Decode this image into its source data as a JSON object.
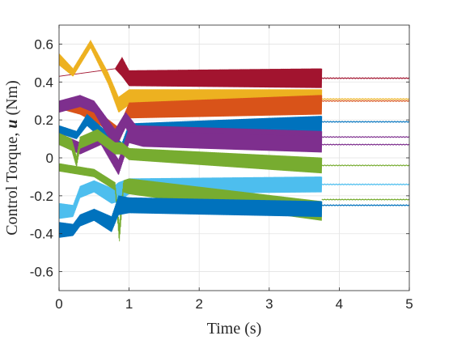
{
  "chart_data": {
    "type": "line",
    "xlabel": "Time (s)",
    "ylabel": "Control Torque, u (Nm)",
    "ylabel_parts": {
      "pre": "Control Torque, ",
      "symbol": "u",
      "post": " (Nm)"
    },
    "xlim": [
      0,
      5
    ],
    "ylim": [
      -0.7,
      0.7
    ],
    "xticks": [
      0,
      1,
      2,
      3,
      4,
      5
    ],
    "xtick_labels": [
      "0",
      "1",
      "2",
      "3",
      "4",
      "5"
    ],
    "yticks": [
      -0.6,
      -0.4,
      -0.2,
      0,
      0.2,
      0.4,
      0.6
    ],
    "ytick_labels": [
      "-0.6",
      "-0.4",
      "-0.2",
      "0",
      "0.2",
      "0.4",
      "0.6"
    ],
    "grid": true,
    "oscillation_end_time": 3.75,
    "series": [
      {
        "color": "#A2142F",
        "t": [
          0,
          0.8,
          0.9,
          1.0,
          3.75,
          5
        ],
        "center": [
          0.43,
          0.47,
          0.48,
          0.42,
          0.42,
          0.42
        ],
        "amplitude": [
          0,
          0,
          0.05,
          0.04,
          0.05,
          0
        ],
        "final": 0.42
      },
      {
        "color": "#EDB120",
        "t": [
          0,
          0.2,
          0.45,
          0.7,
          0.85,
          1.0,
          3.75,
          5
        ],
        "center": [
          0.52,
          0.45,
          0.6,
          0.42,
          0.28,
          0.32,
          0.31,
          0.31
        ],
        "amplitude": [
          0.03,
          0.02,
          0.02,
          0.03,
          0.04,
          0.04,
          0.05,
          0
        ],
        "final": 0.31
      },
      {
        "color": "#D95319",
        "t": [
          0,
          0.3,
          0.6,
          0.85,
          1.0,
          3.75,
          5
        ],
        "center": [
          0.28,
          0.25,
          0.2,
          0.12,
          0.25,
          0.28,
          0.3
        ],
        "amplitude": [
          0.02,
          0.02,
          0.03,
          0.04,
          0.04,
          0.05,
          0
        ],
        "final": 0.3
      },
      {
        "color": "#0072BD",
        "t": [
          0,
          0.25,
          0.4,
          0.7,
          0.9,
          1.0,
          3.75,
          5
        ],
        "center": [
          0.15,
          0.12,
          0.2,
          0.1,
          0.05,
          0.15,
          0.18,
          0.19
        ],
        "amplitude": [
          0.02,
          0.02,
          0.03,
          0.03,
          0.03,
          0.03,
          0.04,
          0
        ],
        "final": 0.19
      },
      {
        "color": "#7E2F8E",
        "t": [
          0,
          0.3,
          0.5,
          0.8,
          0.95,
          1.1,
          3.75,
          5
        ],
        "center": [
          0.27,
          0.3,
          0.27,
          0.1,
          0.2,
          0.12,
          0.1,
          0.11
        ],
        "amplitude": [
          0.03,
          0.03,
          0.03,
          0.05,
          0.04,
          0.05,
          0.04,
          0
        ],
        "final": 0.11
      },
      {
        "color": "#7E2F8E",
        "t": [
          0,
          0.3,
          0.6,
          0.85,
          1.0,
          1.2,
          3.75,
          5
        ],
        "center": [
          0.1,
          0.05,
          0.1,
          -0.05,
          0.12,
          0.1,
          0.07,
          0.07
        ],
        "amplitude": [
          0.03,
          0.03,
          0.03,
          0.04,
          0.04,
          0.04,
          0.04,
          0
        ],
        "final": 0.07
      },
      {
        "color": "#77AC30",
        "t": [
          0,
          0.18,
          0.25,
          0.3,
          0.55,
          0.8,
          0.9,
          1.0,
          3.75,
          5
        ],
        "center": [
          0.1,
          0.07,
          -0.02,
          0.08,
          0.12,
          0.05,
          0.05,
          0.02,
          -0.04,
          -0.04
        ],
        "amplitude": [
          0.03,
          0.03,
          0.03,
          0.03,
          0.03,
          0.03,
          0.03,
          0.03,
          0.04,
          0
        ],
        "final": -0.04
      },
      {
        "color": "#4DBEEE",
        "t": [
          0,
          0.2,
          0.3,
          0.5,
          0.75,
          0.85,
          1.0,
          3.75,
          5
        ],
        "center": [
          -0.28,
          -0.28,
          -0.18,
          -0.15,
          -0.2,
          -0.18,
          -0.15,
          -0.14,
          -0.14
        ],
        "amplitude": [
          0.04,
          0.03,
          0.03,
          0.03,
          0.04,
          0.05,
          0.04,
          0.04,
          0
        ],
        "final": -0.14
      },
      {
        "color": "#77AC30",
        "t": [
          0,
          0.5,
          0.8,
          0.86,
          0.92,
          1.0,
          3.75,
          5
        ],
        "center": [
          -0.05,
          -0.08,
          -0.15,
          -0.4,
          -0.15,
          -0.15,
          -0.28,
          -0.22
        ],
        "amplitude": [
          0.02,
          0.02,
          0.02,
          0.05,
          0.03,
          0.04,
          0.05,
          0
        ],
        "final": -0.22
      },
      {
        "color": "#0072BD",
        "t": [
          0,
          0.2,
          0.3,
          0.5,
          0.75,
          0.85,
          1.0,
          3.75,
          5
        ],
        "center": [
          -0.38,
          -0.38,
          -0.33,
          -0.3,
          -0.35,
          -0.25,
          -0.25,
          -0.27,
          -0.25
        ],
        "amplitude": [
          0.04,
          0.03,
          0.03,
          0.03,
          0.04,
          0.05,
          0.04,
          0.04,
          0
        ],
        "final": -0.25
      }
    ]
  }
}
